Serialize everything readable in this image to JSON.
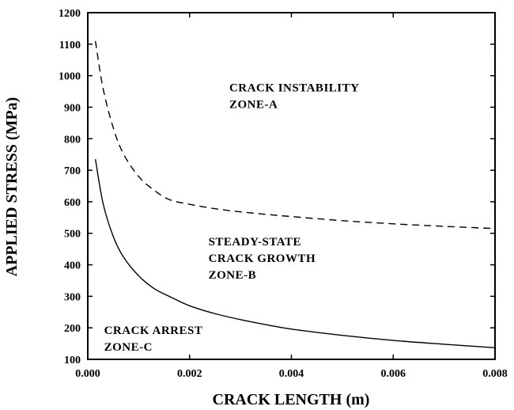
{
  "chart_data": {
    "type": "line",
    "title": "",
    "xlabel": "CRACK LENGTH (m)",
    "ylabel": "APPLIED STRESS (MPa)",
    "xlim": [
      0.0,
      0.008
    ],
    "ylim": [
      100,
      1200
    ],
    "xticks": [
      0.0,
      0.002,
      0.004,
      0.006,
      0.008
    ],
    "xtick_labels": [
      "0.000",
      "0.002",
      "0.004",
      "0.006",
      "0.008"
    ],
    "yticks": [
      100,
      200,
      300,
      400,
      500,
      600,
      700,
      800,
      900,
      1000,
      1100,
      1200
    ],
    "ytick_labels": [
      "100",
      "200",
      "300",
      "400",
      "500",
      "600",
      "700",
      "800",
      "900",
      "1000",
      "1100",
      "1200"
    ],
    "grid": false,
    "series": [
      {
        "name": "Crack instability boundary",
        "style": "dashed",
        "x": [
          0.00015,
          0.0003,
          0.0005,
          0.0007,
          0.001,
          0.0013,
          0.0016,
          0.002,
          0.0025,
          0.003,
          0.0035,
          0.004,
          0.005,
          0.006,
          0.007,
          0.008
        ],
        "y": [
          1110,
          960,
          835,
          752,
          680,
          637,
          607,
          592,
          578,
          568,
          560,
          553,
          540,
          530,
          522,
          515
        ]
      },
      {
        "name": "Crack arrest boundary",
        "style": "solid",
        "x": [
          0.00015,
          0.0003,
          0.0005,
          0.0007,
          0.001,
          0.0013,
          0.0016,
          0.002,
          0.0025,
          0.003,
          0.0035,
          0.004,
          0.005,
          0.006,
          0.007,
          0.008
        ],
        "y": [
          735,
          595,
          490,
          425,
          365,
          325,
          300,
          270,
          245,
          226,
          210,
          196,
          176,
          160,
          148,
          137
        ]
      }
    ],
    "annotations": [
      {
        "lines": [
          "CRACK INSTABILITY",
          "ZONE-A"
        ],
        "x": 0.00278,
        "y": 950
      },
      {
        "lines": [
          "STEADY-STATE",
          "CRACK GROWTH",
          "ZONE-B"
        ],
        "x": 0.00237,
        "y": 462
      },
      {
        "lines": [
          "CRACK ARREST",
          "ZONE-C"
        ],
        "x": 0.00032,
        "y": 180
      }
    ]
  }
}
